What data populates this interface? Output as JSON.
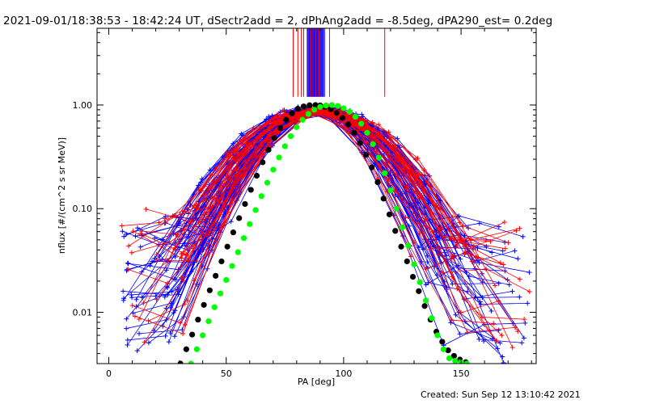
{
  "title": "2021-09-01/18:38:53 - 18:42:24 UT, dSectr2add = 2, dPhAng2add = -8.5deg, dPA290_est=  0.2deg",
  "footer": "Created: Sun Sep 12 13:10:42 2021",
  "colors": {
    "red": "#ff0000",
    "blue": "#0000ff",
    "black": "#000000",
    "green": "#00ff00",
    "axis": "#000000"
  },
  "chart_data": {
    "type": "line",
    "xlabel": "PA [deg]",
    "ylabel": "nflux [#/(cm^2 s sr MeV)]",
    "xlim": [
      -5,
      182
    ],
    "ylim": [
      0.0032,
      5.5
    ],
    "yscale": "log",
    "xticks": [
      0,
      50,
      100,
      150
    ],
    "xtick_labels": [
      "0",
      "50",
      "100",
      "150"
    ],
    "yticks": [
      0.01,
      0.1,
      1.0
    ],
    "ytick_labels": [
      "0.01",
      "0.10",
      "1.00"
    ],
    "series": [
      {
        "color": "black",
        "style": "filled-circles",
        "x": [
          30.5,
          33,
          35.5,
          38,
          40.5,
          43,
          45.5,
          48,
          50.5,
          53,
          55.5,
          58,
          60.5,
          63,
          65.5,
          68,
          70.5,
          73,
          75.5,
          78,
          80.5,
          83,
          85.5,
          88,
          90,
          92,
          94.5,
          97,
          99.5,
          102,
          104.5,
          107,
          109.5,
          112,
          114.5,
          117,
          119.5,
          122,
          124.5,
          127,
          129.5,
          132,
          134.5,
          137,
          139.5,
          142,
          144.5,
          147,
          149.5,
          152
        ],
        "y": [
          0.0032,
          0.0044,
          0.0061,
          0.0085,
          0.0118,
          0.0163,
          0.0225,
          0.031,
          0.043,
          0.059,
          0.081,
          0.111,
          0.152,
          0.208,
          0.28,
          0.37,
          0.48,
          0.6,
          0.72,
          0.83,
          0.92,
          0.97,
          0.995,
          1.0,
          0.99,
          0.96,
          0.91,
          0.84,
          0.75,
          0.65,
          0.54,
          0.43,
          0.33,
          0.25,
          0.18,
          0.125,
          0.088,
          0.061,
          0.043,
          0.031,
          0.022,
          0.016,
          0.0115,
          0.0085,
          0.0065,
          0.0052,
          0.0043,
          0.0038,
          0.0035,
          0.0033
        ]
      },
      {
        "color": "green",
        "style": "filled-circles",
        "x": [
          35,
          37.5,
          40,
          42.5,
          45,
          47.5,
          50,
          52.5,
          55,
          57.5,
          60,
          62.5,
          65,
          67.5,
          70,
          72.5,
          75,
          77.5,
          80,
          82.5,
          85,
          87.5,
          90,
          92.5,
          95,
          97.5,
          100,
          102.5,
          105,
          107.5,
          110,
          112.5,
          115,
          117.5,
          120,
          122.5,
          125,
          127.5,
          130,
          132.5,
          135,
          137.5,
          140,
          142.5,
          145,
          147.5,
          150,
          152.5
        ],
        "y": [
          0.0032,
          0.0044,
          0.006,
          0.0082,
          0.0112,
          0.0152,
          0.0205,
          0.028,
          0.038,
          0.052,
          0.071,
          0.097,
          0.132,
          0.178,
          0.238,
          0.312,
          0.4,
          0.5,
          0.61,
          0.72,
          0.82,
          0.9,
          0.96,
          0.99,
          1.0,
          0.98,
          0.93,
          0.86,
          0.77,
          0.66,
          0.54,
          0.42,
          0.31,
          0.22,
          0.15,
          0.1,
          0.066,
          0.044,
          0.029,
          0.0195,
          0.013,
          0.0088,
          0.006,
          0.0044,
          0.0036,
          0.0034,
          0.0033,
          0.0032
        ]
      }
    ],
    "fan": {
      "peak_pa": 90,
      "red_traces": 40,
      "blue_traces": 75,
      "wing_min_flux": 0.0045,
      "wing_max_flux": 0.075,
      "vertical_marks_pa": [
        78.5,
        80.5,
        82,
        83,
        85,
        86,
        87,
        88,
        89.5,
        92,
        94,
        117.5
      ],
      "vertical_marks_ymin": 1.2
    }
  }
}
